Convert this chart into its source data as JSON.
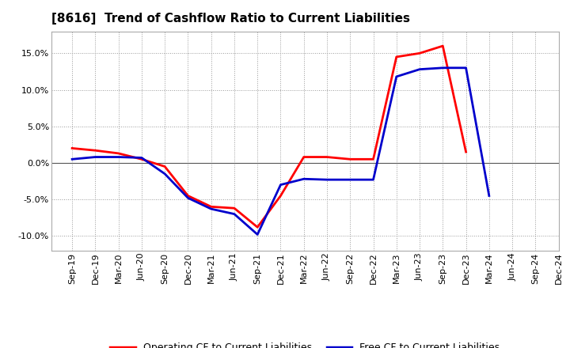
{
  "title": "[8616]  Trend of Cashflow Ratio to Current Liabilities",
  "x_labels": [
    "Sep-19",
    "Dec-19",
    "Mar-20",
    "Jun-20",
    "Sep-20",
    "Dec-20",
    "Mar-21",
    "Jun-21",
    "Sep-21",
    "Dec-21",
    "Mar-22",
    "Jun-22",
    "Sep-22",
    "Dec-22",
    "Mar-23",
    "Jun-23",
    "Sep-23",
    "Dec-23",
    "Mar-24",
    "Jun-24",
    "Sep-24",
    "Dec-24"
  ],
  "operating_cf": [
    2.0,
    1.7,
    1.3,
    0.5,
    -0.5,
    -4.5,
    -6.0,
    -6.2,
    -8.8,
    -4.5,
    0.8,
    0.8,
    0.5,
    0.5,
    14.5,
    15.0,
    16.0,
    1.5,
    null,
    null,
    null,
    null
  ],
  "free_cf": [
    0.5,
    0.8,
    0.8,
    0.7,
    -1.5,
    -4.8,
    -6.3,
    -7.0,
    -9.8,
    -3.0,
    -2.2,
    -2.3,
    -2.3,
    -2.3,
    11.8,
    12.8,
    13.0,
    13.0,
    -4.5,
    null,
    null,
    null
  ],
  "operating_cf_color": "#ff0000",
  "free_cf_color": "#0000cc",
  "background_color": "#ffffff",
  "plot_bg_color": "#ffffff",
  "grid_color": "#999999",
  "ylim": [
    -12,
    18
  ],
  "yticks": [
    -10,
    -5,
    0,
    5,
    10,
    15
  ],
  "legend_op": "Operating CF to Current Liabilities",
  "legend_free": "Free CF to Current Liabilities",
  "line_width": 2.0,
  "title_fontsize": 11,
  "tick_fontsize": 8,
  "legend_fontsize": 9
}
